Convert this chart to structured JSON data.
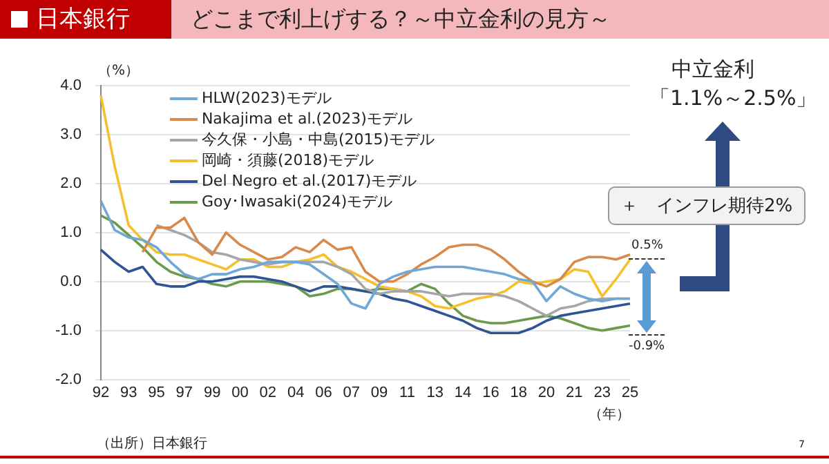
{
  "chart_data": {
    "type": "line",
    "title": "どこまで利上げする？～中立金利の見方～",
    "subtitle": "日本銀行",
    "ylabel": "（%）",
    "xlabel": "（年）",
    "annotations": [
      "中立金利",
      "「1.1%～2.5%」",
      "＋　インフレ期待2%",
      "0.5%",
      "-0.9%",
      "（出所）日本銀行",
      "7"
    ],
    "categories": [
      "92",
      null,
      "93",
      null,
      "95",
      null,
      "97",
      null,
      "99",
      null,
      "00",
      null,
      "02",
      null,
      "04",
      null,
      "06",
      null,
      "07",
      null,
      "09",
      null,
      "11",
      null,
      "13",
      null,
      "14",
      null,
      "16",
      null,
      "18",
      null,
      "20",
      null,
      "21",
      null,
      "23",
      null,
      "25"
    ],
    "ylim": [
      -2,
      4
    ],
    "yticks": [
      {
        "value": -2,
        "label": "-2.0"
      },
      {
        "value": -1,
        "label": "-1.0"
      },
      {
        "value": 0,
        "label": "0.0"
      },
      {
        "value": 1,
        "label": "1.0"
      },
      {
        "value": 2,
        "label": "2.0"
      },
      {
        "value": 3,
        "label": "3.0"
      },
      {
        "value": 4,
        "label": "4.0"
      }
    ],
    "grid": "y",
    "legend": "top left",
    "marker": "none",
    "line_style": "solid",
    "series": [
      {
        "name": "HLW(2023)モデル",
        "color": "#6fa8d6",
        "values": [
          1.65,
          1.05,
          0.9,
          0.85,
          0.7,
          0.4,
          0.15,
          0.05,
          0.15,
          0.15,
          0.25,
          0.3,
          0.4,
          0.4,
          0.4,
          0.35,
          0.15,
          -0.05,
          -0.45,
          -0.55,
          -0.05,
          0.1,
          0.2,
          0.25,
          0.3,
          0.3,
          0.3,
          0.25,
          0.2,
          0.15,
          0.05,
          0,
          -0.4,
          -0.1,
          -0.25,
          -0.35,
          -0.4,
          -0.35,
          -0.35
        ]
      },
      {
        "name": "Nakajima et al.(2023)モデル",
        "color": "#d9894a",
        "values": [
          null,
          null,
          null,
          0.6,
          1.1,
          1.1,
          1.3,
          0.8,
          0.55,
          1.0,
          0.75,
          0.6,
          0.45,
          0.5,
          0.7,
          0.6,
          0.85,
          0.65,
          0.7,
          0.2,
          0,
          0,
          0.15,
          0.35,
          0.5,
          0.7,
          0.75,
          0.75,
          0.65,
          0.45,
          0.2,
          0,
          -0.1,
          0.05,
          0.4,
          0.5,
          0.5,
          0.45,
          0.55
        ]
      },
      {
        "name": "今久保・小島・中島(2015)モデル",
        "color": "#a6a6a6",
        "values": [
          null,
          null,
          null,
          null,
          1.15,
          1.05,
          0.95,
          0.8,
          0.6,
          0.55,
          0.45,
          0.4,
          0.35,
          0.4,
          0.4,
          0.4,
          0.4,
          0.3,
          0.15,
          -0.15,
          -0.25,
          -0.2,
          -0.2,
          -0.2,
          -0.25,
          -0.3,
          -0.25,
          -0.25,
          -0.25,
          -0.3,
          -0.4,
          -0.55,
          -0.7,
          -0.55,
          -0.5,
          -0.4,
          -0.35,
          -0.35,
          -0.35
        ]
      },
      {
        "name": "岡崎・須藤(2018)モデル",
        "color": "#f5c02c",
        "values": [
          3.8,
          2.35,
          1.15,
          0.85,
          0.6,
          0.55,
          0.55,
          0.45,
          0.35,
          0.25,
          0.45,
          0.45,
          0.3,
          0.3,
          0.4,
          0.45,
          0.55,
          0.3,
          0.2,
          0.05,
          -0.1,
          -0.15,
          -0.2,
          -0.3,
          -0.5,
          -0.55,
          -0.45,
          -0.35,
          -0.3,
          -0.2,
          0,
          -0.05,
          0,
          0.05,
          0.25,
          0.2,
          -0.3,
          0.05,
          0.45
        ]
      },
      {
        "name": "Del Negro et al.(2017)モデル",
        "color": "#2e5496",
        "values": [
          0.65,
          0.4,
          0.2,
          0.3,
          -0.05,
          -0.1,
          -0.1,
          0,
          0,
          0.05,
          0.1,
          0.1,
          0.05,
          0,
          -0.1,
          -0.2,
          -0.1,
          -0.1,
          -0.15,
          -0.2,
          -0.25,
          -0.35,
          -0.4,
          -0.5,
          -0.6,
          -0.7,
          -0.8,
          -0.95,
          -1.05,
          -1.05,
          -1.05,
          -0.95,
          -0.8,
          -0.7,
          -0.65,
          -0.6,
          -0.55,
          -0.5,
          -0.45
        ]
      },
      {
        "name": "Goy･Iwasaki(2024)モデル",
        "color": "#6b9a4c",
        "values": [
          1.35,
          1.2,
          0.95,
          0.7,
          0.4,
          0.2,
          0.1,
          0.05,
          -0.05,
          -0.1,
          0,
          0,
          0,
          -0.05,
          -0.1,
          -0.3,
          -0.25,
          -0.15,
          -0.15,
          -0.2,
          -0.15,
          -0.15,
          -0.2,
          -0.05,
          -0.15,
          -0.45,
          -0.7,
          -0.8,
          -0.85,
          -0.85,
          -0.8,
          -0.75,
          -0.7,
          -0.75,
          -0.85,
          -0.95,
          -1.0,
          -0.95,
          -0.9
        ]
      }
    ]
  }
}
